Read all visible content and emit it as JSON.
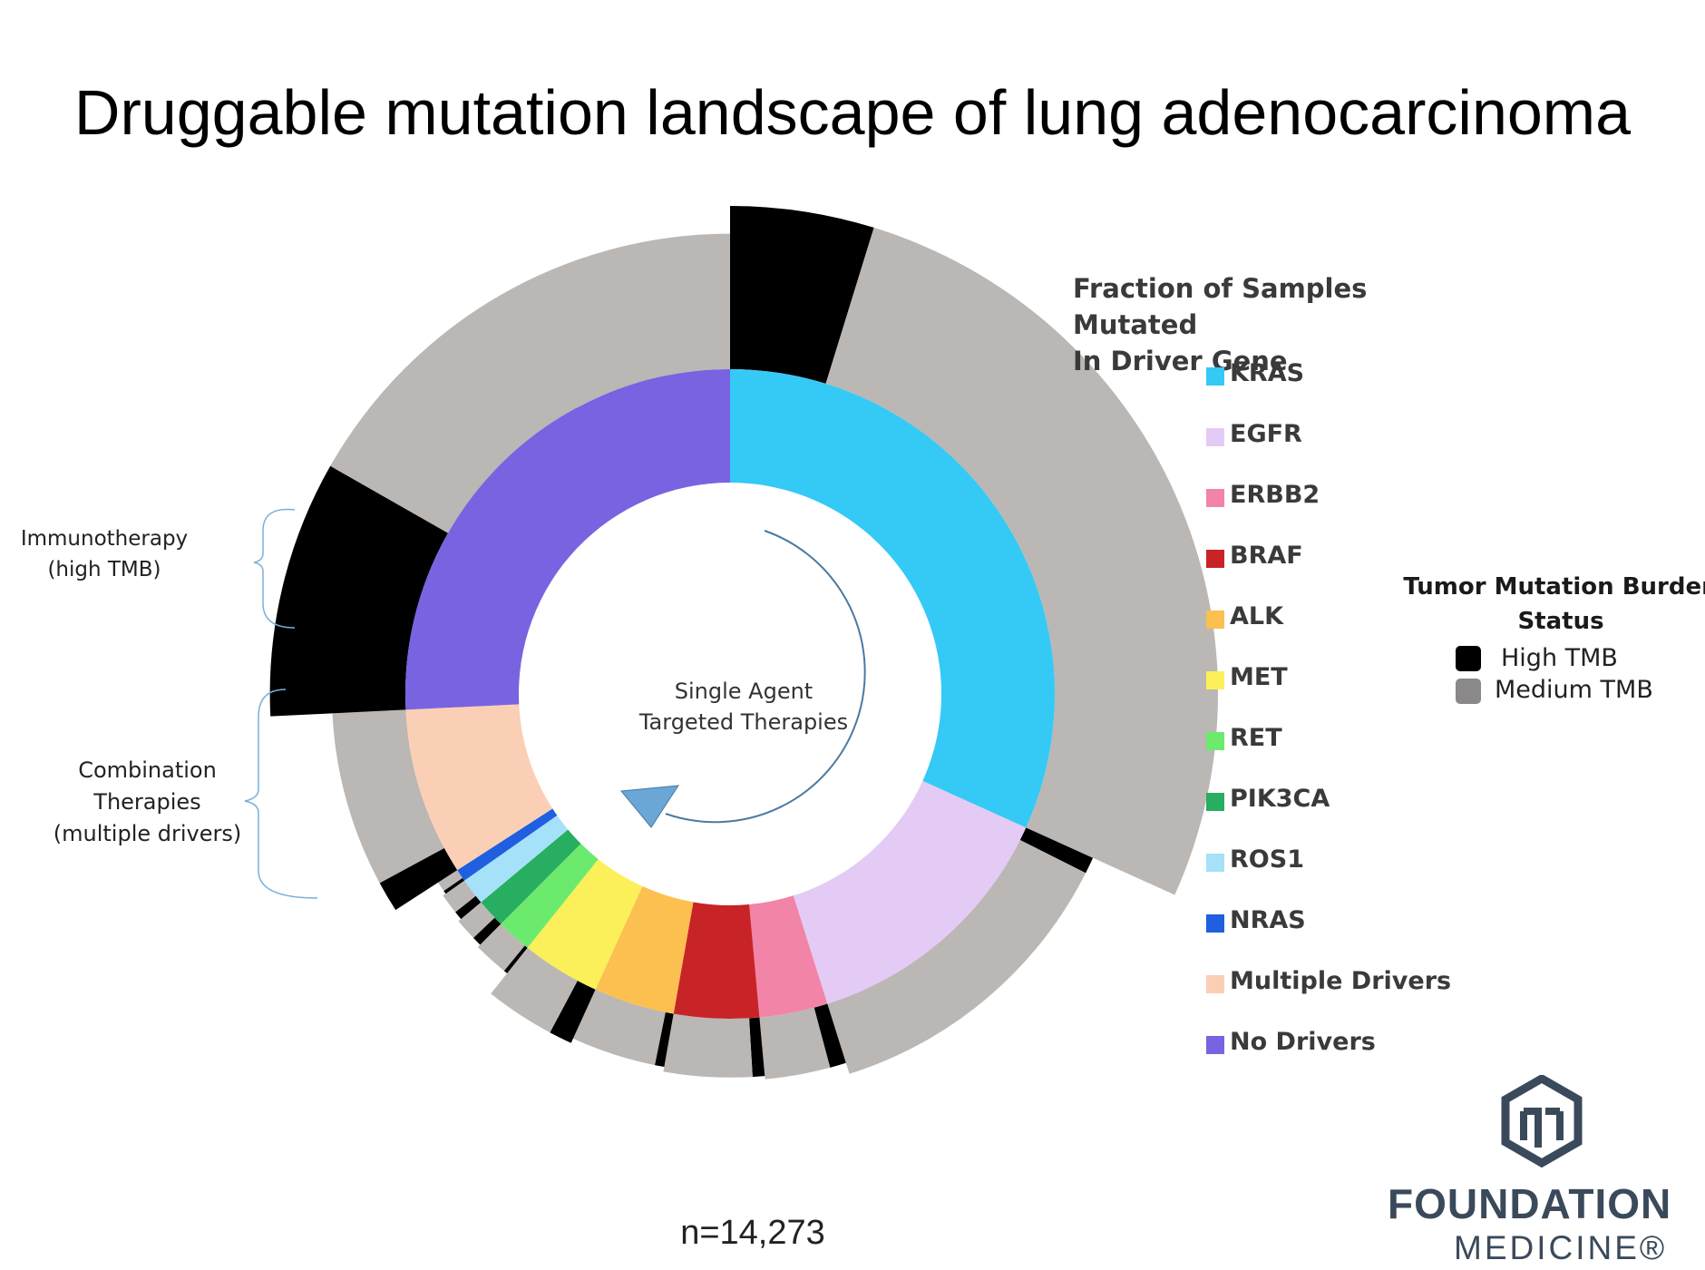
{
  "title": "Druggable mutation landscape of lung adenocarcinoma",
  "n_label": "n=14,273",
  "center_label": [
    "Single Agent",
    "Targeted Therapies"
  ],
  "bracket_labels": {
    "immunotherapy": [
      "Immunotherapy",
      "(high TMB)"
    ],
    "combination": [
      "Combination",
      "Therapies",
      "(multiple drivers)"
    ]
  },
  "legend": {
    "title": [
      "Fraction of Samples Mutated",
      "In Driver Gene"
    ],
    "items": [
      {
        "label": "KRAS",
        "color": "#35c9f6"
      },
      {
        "label": "EGFR",
        "color": "#e3cbf6"
      },
      {
        "label": "ERBB2",
        "color": "#f284a8"
      },
      {
        "label": "BRAF",
        "color": "#c82327"
      },
      {
        "label": "ALK",
        "color": "#fbc04f"
      },
      {
        "label": "MET",
        "color": "#fbf059"
      },
      {
        "label": "RET",
        "color": "#6cea6e"
      },
      {
        "label": "PIK3CA",
        "color": "#27ae60"
      },
      {
        "label": "ROS1",
        "color": "#a5e1f8"
      },
      {
        "label": "NRAS",
        "color": "#1f5fe0"
      },
      {
        "label": "Multiple Drivers",
        "color": "#fbcfb6"
      },
      {
        "label": "No Drivers",
        "color": "#7963e1"
      }
    ]
  },
  "tmb_legend": {
    "title": [
      "Tumor Mutation Burden",
      "Status"
    ],
    "items": [
      {
        "label": "High TMB",
        "color": "#000000"
      },
      {
        "label": "Medium TMB",
        "color": "#8a8888"
      }
    ]
  },
  "logo": {
    "line1": "FOUNDATION",
    "line2": "MEDICINE®",
    "color": "#3a4a5a"
  },
  "chart_data": {
    "type": "sunburst",
    "inner_ring": {
      "series": [
        {
          "name": "KRAS",
          "fraction": 0.308,
          "color": "#35c9f6"
        },
        {
          "name": "EGFR",
          "fraction": 0.13,
          "color": "#e3cbf6"
        },
        {
          "name": "ERBB2",
          "fraction": 0.033,
          "color": "#f284a8"
        },
        {
          "name": "BRAF",
          "fraction": 0.041,
          "color": "#c82327"
        },
        {
          "name": "ALK",
          "fraction": 0.039,
          "color": "#fbc04f"
        },
        {
          "name": "MET",
          "fraction": 0.038,
          "color": "#fbf059"
        },
        {
          "name": "RET",
          "fraction": 0.017,
          "color": "#6cea6e"
        },
        {
          "name": "PIK3CA",
          "fraction": 0.014,
          "color": "#27ae60"
        },
        {
          "name": "ROS1",
          "fraction": 0.013,
          "color": "#a5e1f8"
        },
        {
          "name": "NRAS",
          "fraction": 0.006,
          "color": "#1f5fe0"
        },
        {
          "name": "Multiple Drivers",
          "fraction": 0.081,
          "color": "#fbcfb6"
        },
        {
          "name": "No Drivers",
          "fraction": 0.25,
          "color": "#7963e1"
        }
      ]
    },
    "outer_ring": {
      "note": "TMB status bars per driver; relative bar length",
      "series": [
        {
          "name": "KRAS",
          "high": 0.15,
          "medium": 0.85,
          "length": 1.0
        },
        {
          "name": "EGFR",
          "high": 0.05,
          "medium": 0.95,
          "length": 0.45
        },
        {
          "name": "ERBB2",
          "high": 0.2,
          "medium": 0.8,
          "length": 0.38
        },
        {
          "name": "BRAF",
          "high": 0.12,
          "medium": 0.88,
          "length": 0.36
        },
        {
          "name": "ALK",
          "high": 0.1,
          "medium": 0.9,
          "length": 0.33
        },
        {
          "name": "MET",
          "high": 0.25,
          "medium": 0.75,
          "length": 0.36
        },
        {
          "name": "RET",
          "high": 0.1,
          "medium": 0.9,
          "length": 0.2
        },
        {
          "name": "PIK3CA",
          "high": 0.3,
          "medium": 0.7,
          "length": 0.18
        },
        {
          "name": "ROS1",
          "high": 0.3,
          "medium": 0.7,
          "length": 0.16
        },
        {
          "name": "NRAS",
          "high": 0.25,
          "medium": 0.75,
          "length": 0.14
        },
        {
          "name": "Multiple Drivers",
          "high": 0.15,
          "medium": 0.85,
          "length": 0.45
        },
        {
          "name": "No Drivers",
          "high": 0.35,
          "medium": 0.65,
          "length": 0.83
        }
      ]
    }
  }
}
